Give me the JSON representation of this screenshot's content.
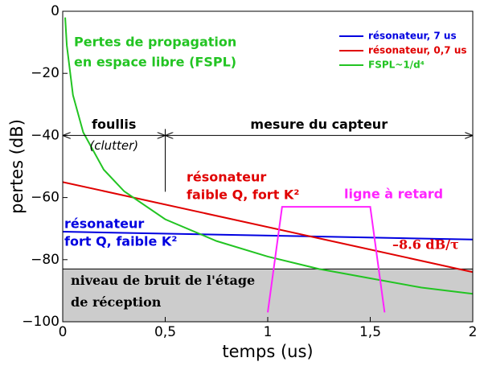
{
  "chart_data": {
    "type": "line",
    "xlabel": "temps (us)",
    "ylabel": "pertes (dB)",
    "xlim": [
      0,
      2
    ],
    "ylim": [
      -100,
      0
    ],
    "xticks": [
      0,
      {
        "value": 0.5,
        "label": "0,5"
      },
      1,
      {
        "value": 1.5,
        "label": "1,5"
      },
      2
    ],
    "yticks": [
      0,
      {
        "value": -20,
        "label": "−20"
      },
      {
        "value": -40,
        "label": "−40"
      },
      {
        "value": -60,
        "label": "−60"
      },
      {
        "value": -80,
        "label": "−80"
      },
      {
        "value": -100,
        "label": "−100"
      }
    ],
    "series": [
      {
        "name": "résonateur, 7 us",
        "color": "#0000e0",
        "x": [
          0,
          2
        ],
        "values": [
          -71,
          -73.5
        ]
      },
      {
        "name": "résonateur, 0,7 us",
        "color": "#e00000",
        "x": [
          0,
          2
        ],
        "values": [
          -55,
          -84
        ]
      },
      {
        "name": "FSPL~1/d⁴",
        "color": "#22c422",
        "x": [
          0.012,
          0.02,
          0.05,
          0.1,
          0.2,
          0.3,
          0.5,
          0.75,
          1,
          1.25,
          1.5,
          1.75,
          2
        ],
        "values": [
          -2,
          -11,
          -27,
          -39,
          -51,
          -58,
          -67,
          -74,
          -79,
          -83,
          -86,
          -89,
          -91
        ]
      },
      {
        "color": "#ff22ff",
        "x": [
          1,
          1.07,
          1.5,
          1.57
        ],
        "values": [
          -97,
          -63,
          -63,
          -97
        ]
      }
    ],
    "noise_floor": -83,
    "noise_label": [
      "niveau de bruit de l'étage",
      "de réception"
    ],
    "region_y": -40,
    "regions": [
      {
        "label": "foullis",
        "sublabel": "(clutter)",
        "from": 0,
        "to": 0.5
      },
      {
        "label": "mesure du capteur",
        "from": 0.5,
        "to": 2
      }
    ],
    "annotations": [
      {
        "lines": [
          "Pertes de propagation",
          "en espace libre (FSPL)"
        ],
        "color": "#22c422"
      },
      {
        "lines": [
          "résonateur",
          "faible Q, fort K²"
        ],
        "color": "#e00000"
      },
      {
        "lines": [
          "ligne à retard"
        ],
        "color": "#ff22ff"
      },
      {
        "lines": [
          "résonateur",
          "fort Q, faible K²"
        ],
        "color": "#0000e0"
      },
      {
        "lines": [
          "–8.6 dB/τ"
        ],
        "color": "#e00000"
      }
    ]
  }
}
